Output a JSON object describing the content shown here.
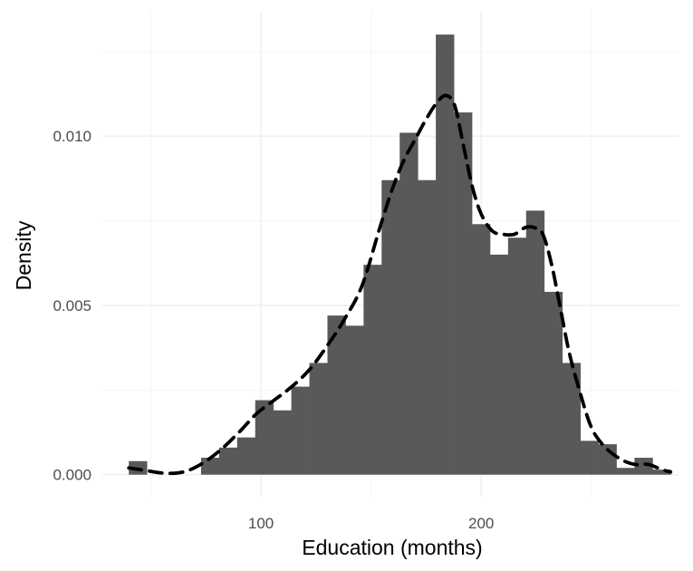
{
  "chart_data": {
    "type": "histogram",
    "xlabel": "Education (months)",
    "ylabel": "Density",
    "xlim": [
      28,
      290
    ],
    "ylim": [
      -0.00065,
      0.0137
    ],
    "x_ticks": [
      100,
      200
    ],
    "x_tick_labels": [
      "100",
      "200"
    ],
    "x_minor_ticks": [
      50,
      150,
      250
    ],
    "y_ticks": [
      0.0,
      0.005,
      0.01
    ],
    "y_tick_labels": [
      "0.000",
      "0.005",
      "0.010"
    ],
    "y_minor_ticks": [
      0.0025,
      0.0075,
      0.0125
    ],
    "grid": true,
    "bin_width": 8.2,
    "bins": [
      {
        "x0": 40.0,
        "x1": 48.2,
        "density": 0.0004
      },
      {
        "x0": 48.2,
        "x1": 56.4,
        "density": 0.0
      },
      {
        "x0": 56.4,
        "x1": 64.6,
        "density": 0.0
      },
      {
        "x0": 64.6,
        "x1": 72.8,
        "density": 0.0
      },
      {
        "x0": 72.8,
        "x1": 81.0,
        "density": 0.0005
      },
      {
        "x0": 81.0,
        "x1": 89.2,
        "density": 0.0008
      },
      {
        "x0": 89.2,
        "x1": 97.4,
        "density": 0.0011
      },
      {
        "x0": 97.4,
        "x1": 105.6,
        "density": 0.0022
      },
      {
        "x0": 105.6,
        "x1": 113.8,
        "density": 0.0019
      },
      {
        "x0": 113.8,
        "x1": 122.0,
        "density": 0.0026
      },
      {
        "x0": 122.0,
        "x1": 130.2,
        "density": 0.0033
      },
      {
        "x0": 130.2,
        "x1": 138.4,
        "density": 0.0047
      },
      {
        "x0": 138.4,
        "x1": 146.6,
        "density": 0.0044
      },
      {
        "x0": 146.6,
        "x1": 154.8,
        "density": 0.0062
      },
      {
        "x0": 154.8,
        "x1": 163.0,
        "density": 0.0087
      },
      {
        "x0": 163.0,
        "x1": 171.2,
        "density": 0.0101
      },
      {
        "x0": 171.2,
        "x1": 179.4,
        "density": 0.0087
      },
      {
        "x0": 179.4,
        "x1": 187.6,
        "density": 0.013
      },
      {
        "x0": 187.6,
        "x1": 195.8,
        "density": 0.0107
      },
      {
        "x0": 195.8,
        "x1": 204.0,
        "density": 0.0074
      },
      {
        "x0": 204.0,
        "x1": 212.2,
        "density": 0.0065
      },
      {
        "x0": 212.2,
        "x1": 220.4,
        "density": 0.007
      },
      {
        "x0": 220.4,
        "x1": 228.6,
        "density": 0.0078
      },
      {
        "x0": 228.6,
        "x1": 236.8,
        "density": 0.0054
      },
      {
        "x0": 236.8,
        "x1": 245.0,
        "density": 0.0033
      },
      {
        "x0": 245.0,
        "x1": 253.2,
        "density": 0.001
      },
      {
        "x0": 253.2,
        "x1": 261.4,
        "density": 0.0009
      },
      {
        "x0": 261.4,
        "x1": 269.6,
        "density": 0.0002
      },
      {
        "x0": 269.6,
        "x1": 277.8,
        "density": 0.0005
      },
      {
        "x0": 277.8,
        "x1": 286.0,
        "density": 0.00015
      }
    ],
    "density_curve": {
      "style": "dashed",
      "color": "#000000",
      "x": [
        40,
        48,
        55,
        62,
        68,
        75,
        82,
        90,
        98,
        106,
        114,
        122,
        130,
        138,
        146,
        154,
        160,
        165,
        170,
        175,
        180,
        184,
        188,
        192,
        196,
        200,
        205,
        210,
        215,
        220,
        224,
        228,
        232,
        236,
        240,
        245,
        250,
        255,
        260,
        265,
        270,
        276,
        282,
        286
      ],
      "y": [
        0.0002,
        0.00012,
        5e-05,
        5e-05,
        0.00015,
        0.0004,
        0.00075,
        0.00125,
        0.0018,
        0.0022,
        0.0026,
        0.0031,
        0.0038,
        0.0046,
        0.0056,
        0.0073,
        0.0085,
        0.0093,
        0.0099,
        0.0105,
        0.011,
        0.0112,
        0.0109,
        0.0097,
        0.0085,
        0.0077,
        0.0072,
        0.0071,
        0.0071,
        0.0073,
        0.0073,
        0.0071,
        0.0062,
        0.0049,
        0.0036,
        0.0024,
        0.0014,
        0.0009,
        0.0006,
        0.0004,
        0.0003,
        0.0003,
        0.00015,
        8e-05
      ]
    },
    "colors": {
      "bar_fill": "#595959",
      "density_line": "#000000",
      "grid": "#ebebeb",
      "tick_text": "#4d4d4d"
    }
  }
}
